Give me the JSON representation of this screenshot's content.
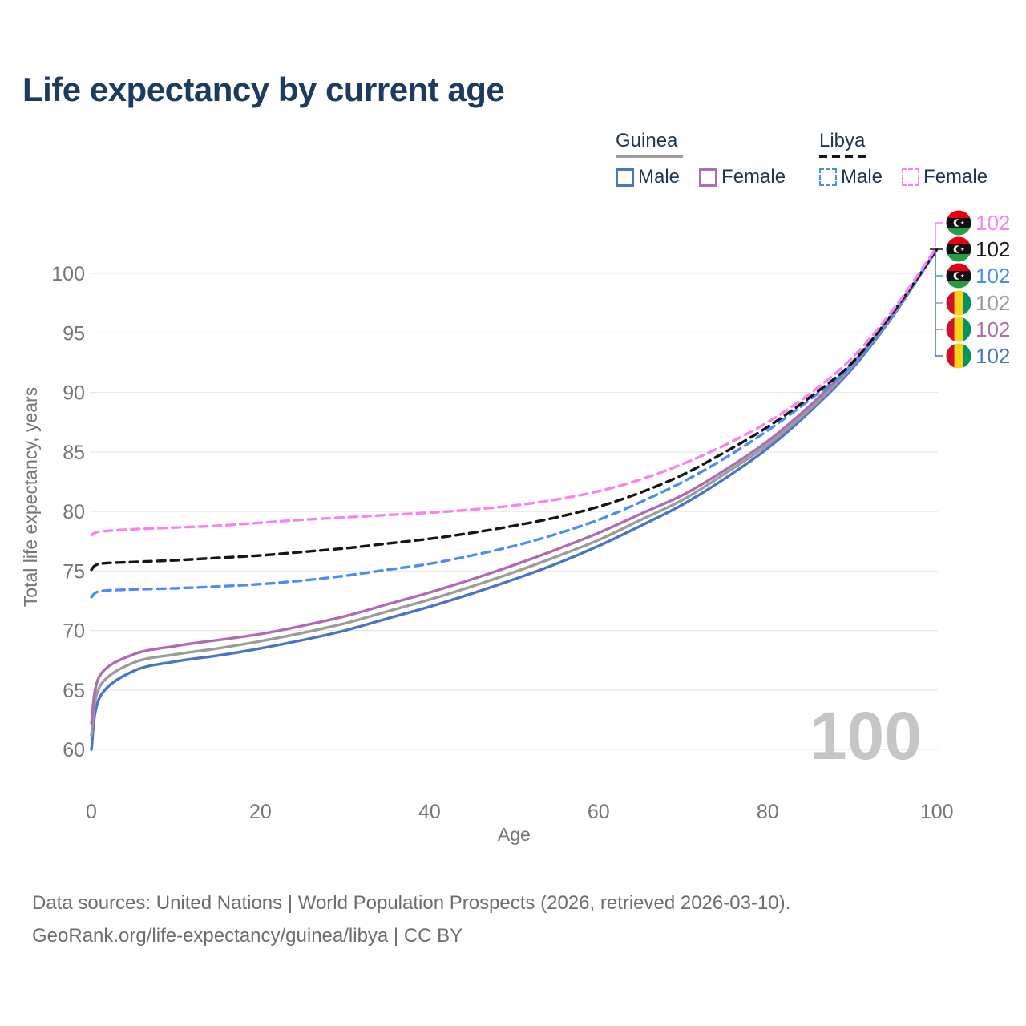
{
  "title": "Life expectancy by current age",
  "watermark": "100",
  "legend": {
    "groups": [
      {
        "label": "Guinea",
        "line_style": "solid",
        "underline_color": "#9e9e9e",
        "items": [
          {
            "label": "Male",
            "color": "#4a74c8"
          },
          {
            "label": "Female",
            "color": "#b06cb2"
          }
        ]
      },
      {
        "label": "Libya",
        "line_style": "dashed",
        "underline_color": "#161616",
        "items": [
          {
            "label": "Male",
            "color": "#4a8df5"
          },
          {
            "label": "Female",
            "color": "#fb80f1"
          }
        ]
      }
    ]
  },
  "end_labels": [
    {
      "flag": "libya-flag",
      "value": "102",
      "color": "#fb80f1"
    },
    {
      "flag": "libya-flag",
      "value": "102",
      "color": "#161616"
    },
    {
      "flag": "libya-flag",
      "value": "102",
      "color": "#4a8df5"
    },
    {
      "flag": "guinea-flag",
      "value": "102",
      "color": "#9c9c9c"
    },
    {
      "flag": "guinea-flag",
      "value": "102",
      "color": "#b06cb2"
    },
    {
      "flag": "guinea-flag",
      "value": "102",
      "color": "#4a74c8"
    }
  ],
  "footer": {
    "line1": "Data sources: United Nations | World Population Prospects (2026, retrieved 2026-03-10).",
    "line2": "GeoRank.org/life-expectancy/guinea/libya | CC BY"
  },
  "chart_data": {
    "type": "line",
    "title": "Life expectancy by current age",
    "xlabel": "Age",
    "ylabel": "Total life expectancy, years",
    "xlim": [
      0,
      100
    ],
    "ylim": [
      58.5,
      103.5
    ],
    "xticks": [
      0,
      20,
      40,
      60,
      80,
      100
    ],
    "yticks": [
      60,
      65,
      70,
      75,
      80,
      85,
      90,
      95,
      100
    ],
    "grid": "horizontal-only",
    "legend_position": "top-right",
    "x": [
      0,
      1,
      5,
      10,
      15,
      20,
      25,
      30,
      35,
      40,
      45,
      50,
      55,
      60,
      65,
      70,
      75,
      80,
      85,
      90,
      95,
      100
    ],
    "series": [
      {
        "name": "Guinea Male",
        "country": "Guinea",
        "sex": "Male",
        "color": "#4a74c8",
        "dash": "solid",
        "values": [
          60.0,
          64.4,
          66.6,
          67.4,
          67.9,
          68.5,
          69.2,
          70.0,
          71.0,
          72.0,
          73.1,
          74.3,
          75.6,
          77.1,
          78.8,
          80.6,
          82.8,
          85.3,
          88.4,
          92.0,
          96.6,
          102.0
        ]
      },
      {
        "name": "Guinea Both sexes",
        "country": "Guinea",
        "sex": "Both",
        "color": "#9c9c9c",
        "dash": "solid",
        "values": [
          61.2,
          65.3,
          67.3,
          68.0,
          68.5,
          69.1,
          69.8,
          70.6,
          71.6,
          72.6,
          73.7,
          74.9,
          76.2,
          77.6,
          79.3,
          81.0,
          83.2,
          85.6,
          88.6,
          92.2,
          96.7,
          102.0
        ]
      },
      {
        "name": "Guinea Female",
        "country": "Guinea",
        "sex": "Female",
        "color": "#b06cb2",
        "dash": "solid",
        "values": [
          62.2,
          66.2,
          68.0,
          68.7,
          69.2,
          69.7,
          70.4,
          71.2,
          72.2,
          73.2,
          74.3,
          75.5,
          76.8,
          78.2,
          79.8,
          81.4,
          83.5,
          85.9,
          88.9,
          92.4,
          96.8,
          102.0
        ]
      },
      {
        "name": "Libya Male",
        "country": "Libya",
        "sex": "Male",
        "color": "#4a8df5",
        "dash": "dashed",
        "values": [
          72.8,
          73.3,
          73.45,
          73.55,
          73.7,
          73.9,
          74.2,
          74.6,
          75.1,
          75.6,
          76.3,
          77.1,
          78.1,
          79.3,
          80.8,
          82.5,
          84.5,
          86.8,
          89.4,
          92.3,
          96.8,
          102.0
        ]
      },
      {
        "name": "Libya Both sexes",
        "country": "Libya",
        "sex": "Both",
        "color": "#161616",
        "dash": "dashed",
        "values": [
          75.1,
          75.6,
          75.75,
          75.9,
          76.1,
          76.3,
          76.6,
          76.9,
          77.3,
          77.7,
          78.2,
          78.8,
          79.5,
          80.4,
          81.6,
          83.1,
          85.0,
          87.1,
          89.6,
          92.5,
          96.9,
          102.0
        ]
      },
      {
        "name": "Libya Female",
        "country": "Libya",
        "sex": "Female",
        "color": "#fb80f1",
        "dash": "dashed",
        "values": [
          78.0,
          78.3,
          78.5,
          78.65,
          78.8,
          79.05,
          79.3,
          79.5,
          79.7,
          79.9,
          80.15,
          80.5,
          81.0,
          81.7,
          82.7,
          84.0,
          85.6,
          87.5,
          89.9,
          92.9,
          97.1,
          102.2
        ]
      }
    ]
  }
}
